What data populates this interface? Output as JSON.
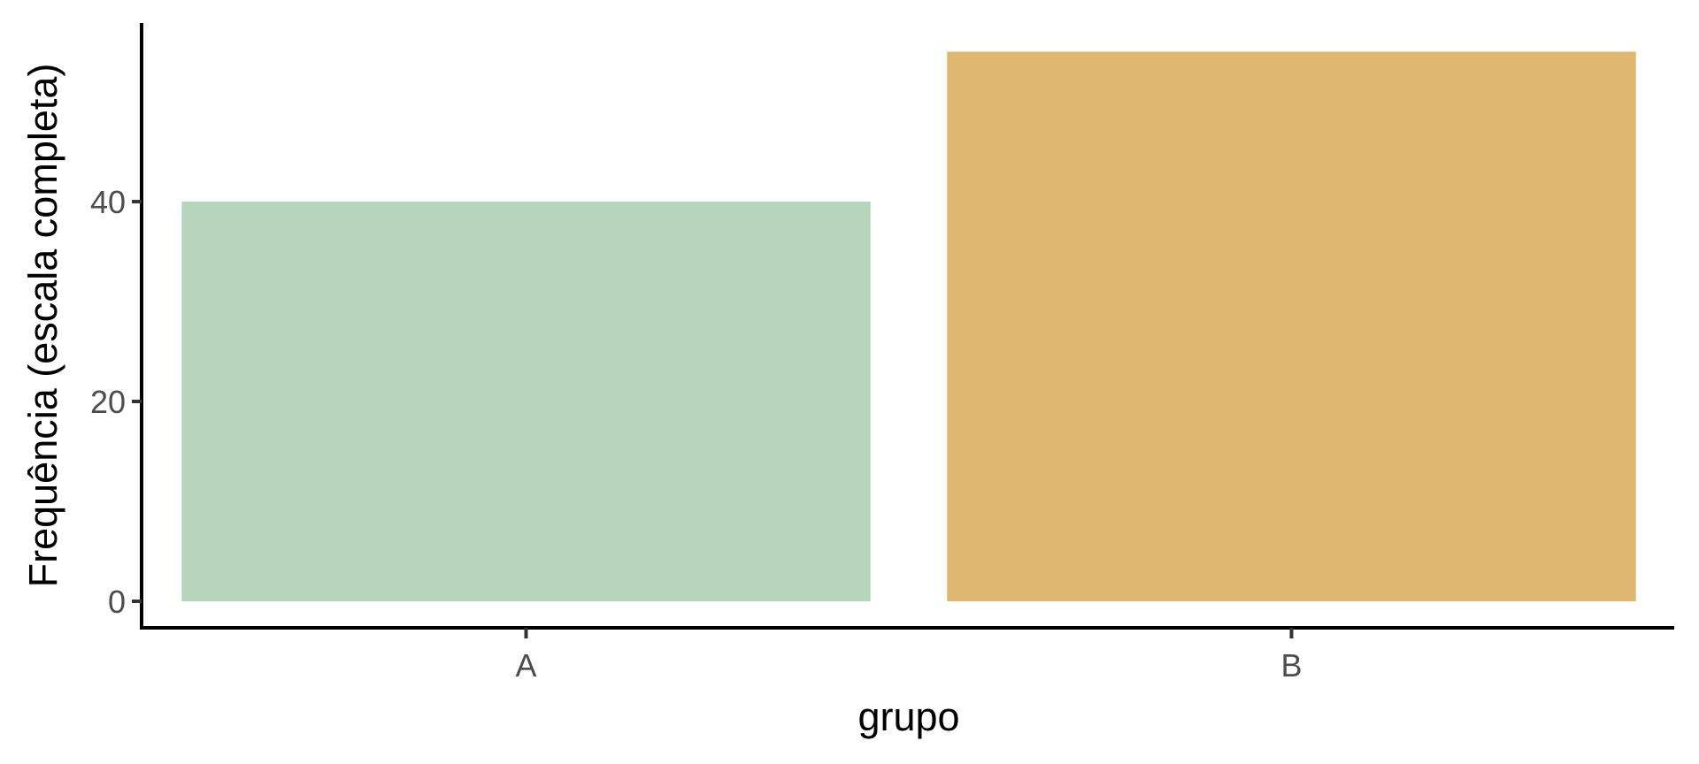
{
  "chart_data": {
    "type": "bar",
    "categories": [
      "A",
      "B"
    ],
    "values": [
      40,
      55
    ],
    "colors": [
      "#b7d5bc",
      "#deb670"
    ],
    "xlabel": "grupo",
    "ylabel": "Frequência (escala completa)",
    "ylim": [
      0,
      57.75
    ],
    "yticks": [
      0,
      20,
      40
    ],
    "grid": false,
    "legend": "none"
  }
}
